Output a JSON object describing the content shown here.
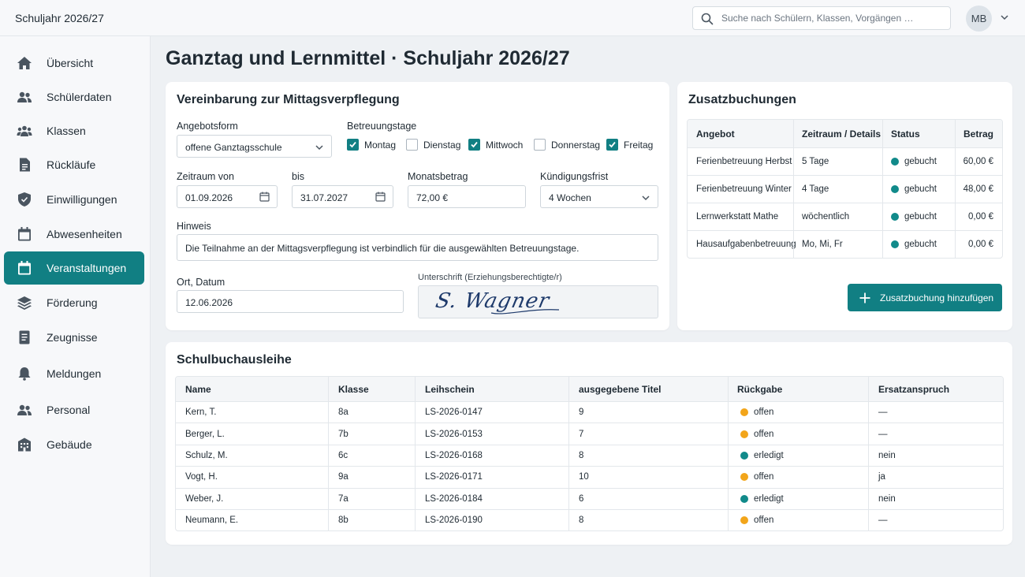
{
  "app": {
    "title": "Schuljahr 2026/27",
    "search_placeholder": "Suche nach Schülern, Klassen, Vorgängen …",
    "user_initials": "MB"
  },
  "sidebar": {
    "items": [
      {
        "label": "Übersicht",
        "icon": "home-icon"
      },
      {
        "label": "Schülerdaten",
        "icon": "people-icon"
      },
      {
        "label": "Klassen",
        "icon": "group-icon"
      },
      {
        "label": "Rückläufe",
        "icon": "document-icon"
      },
      {
        "label": "Einwilligungen",
        "icon": "shield-icon"
      },
      {
        "label": "Abwesenheiten",
        "icon": "calendar-icon"
      },
      {
        "label": "Veranstaltungen",
        "icon": "calendar-icon",
        "active": true
      },
      {
        "label": "Förderung",
        "icon": "layers-icon"
      },
      {
        "label": "Zeugnisse",
        "icon": "report-icon"
      },
      {
        "label": "Meldungen",
        "icon": "bell-icon"
      },
      {
        "label": "Personal",
        "icon": "people-icon"
      },
      {
        "label": "Gebäude",
        "icon": "building-icon"
      }
    ]
  },
  "page": {
    "title": "Ganztag und Lernmittel · Schuljahr 2026/27"
  },
  "meal": {
    "title": "Vereinbarung zur Mittagsverpflegung",
    "angebotsform_label": "Angebotsform",
    "angebotsform_value": "offene Ganztagsschule",
    "betreuungstage_label": "Betreuungstage",
    "days": [
      {
        "label": "Montag",
        "checked": true
      },
      {
        "label": "Dienstag",
        "checked": false
      },
      {
        "label": "Mittwoch",
        "checked": true
      },
      {
        "label": "Donnerstag",
        "checked": false
      },
      {
        "label": "Freitag",
        "checked": true
      }
    ],
    "zeitraum_von_label": "Zeitraum von",
    "zeitraum_von_value": "01.09.2026",
    "bis_label": "bis",
    "bis_value": "31.07.2027",
    "monatsbetrag_label": "Monatsbetrag",
    "monatsbetrag_value": "72,00 €",
    "kuendigung_label": "Kündigungsfrist",
    "kuendigung_value": "4 Wochen",
    "hinweis_label": "Hinweis",
    "hinweis_value": "Die Teilnahme an der Mittagsverpflegung ist verbindlich für die ausgewählten Betreuungstage.",
    "ort_label": "Ort, Datum",
    "ort_value": "12.06.2026",
    "signature_label": "Unterschrift (Erziehungsberechtigte/r)",
    "signature_text": "S. Wagner"
  },
  "zusatz": {
    "title": "Zusatzbuchungen",
    "columns": [
      "Angebot",
      "Zeitraum / Details",
      "Status",
      "Betrag"
    ],
    "rows": [
      {
        "angebot": "Ferienbetreuung Herbst",
        "details": "5 Tage",
        "status": "gebucht",
        "betrag": "60,00 €"
      },
      {
        "angebot": "Ferienbetreuung Winter",
        "details": "4 Tage",
        "status": "gebucht",
        "betrag": "48,00 €"
      },
      {
        "angebot": "Lernwerkstatt Mathe",
        "details": "wöchentlich",
        "status": "gebucht",
        "betrag": "0,00 €"
      },
      {
        "angebot": "Hausaufgabenbetreuung",
        "details": "Mo, Mi, Fr",
        "status": "gebucht",
        "betrag": "0,00 €"
      }
    ],
    "add_label": "Zusatzbuchung hinzufügen"
  },
  "books": {
    "title": "Schulbuchausleihe",
    "columns": [
      "Name",
      "Klasse",
      "Leihschein",
      "ausgegebene Titel",
      "Rückgabe",
      "Ersatzanspruch"
    ],
    "rows": [
      {
        "name": "Kern, T.",
        "klasse": "8a",
        "leihschein": "LS-2026-0147",
        "titel": "9",
        "rueckgabe": "offen",
        "ersatz": "—"
      },
      {
        "name": "Berger, L.",
        "klasse": "7b",
        "leihschein": "LS-2026-0153",
        "titel": "7",
        "rueckgabe": "offen",
        "ersatz": "—"
      },
      {
        "name": "Schulz, M.",
        "klasse": "6c",
        "leihschein": "LS-2026-0168",
        "titel": "8",
        "rueckgabe": "erledigt",
        "ersatz": "nein"
      },
      {
        "name": "Vogt, H.",
        "klasse": "9a",
        "leihschein": "LS-2026-0171",
        "titel": "10",
        "rueckgabe": "offen",
        "ersatz": "ja"
      },
      {
        "name": "Weber, J.",
        "klasse": "7a",
        "leihschein": "LS-2026-0184",
        "titel": "6",
        "rueckgabe": "erledigt",
        "ersatz": "nein"
      },
      {
        "name": "Neumann, E.",
        "klasse": "8b",
        "leihschein": "LS-2026-0190",
        "titel": "8",
        "rueckgabe": "offen",
        "ersatz": "—"
      }
    ]
  },
  "colors": {
    "accent": "#117f83",
    "status_done": "#118a8a",
    "status_open": "#f2a51a"
  }
}
